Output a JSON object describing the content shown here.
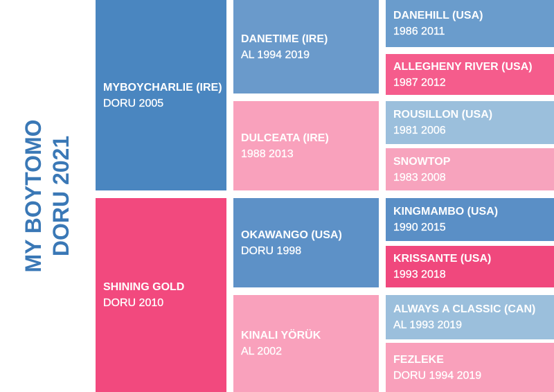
{
  "subject": {
    "name": "MY BOYTOMO",
    "details": "DORU 2021"
  },
  "generations": [
    [
      {
        "name": "MYBOYCHARLIE (IRE)",
        "details": "DORU 2005"
      },
      {
        "name": "SHINING GOLD",
        "details": "DORU 2010"
      }
    ],
    [
      {
        "name": "DANETIME (IRE)",
        "details": "AL 1994 2019"
      },
      {
        "name": "DULCEATA (IRE)",
        "details": "1988 2013"
      },
      {
        "name": "OKAWANGO (USA)",
        "details": "DORU 1998"
      },
      {
        "name": "KINALI YÖRÜK",
        "details": "AL 2002"
      }
    ],
    [
      {
        "name": "DANEHILL (USA)",
        "details": "1986 2011"
      },
      {
        "name": "ALLEGHENY RIVER (USA)",
        "details": "1987 2012"
      },
      {
        "name": "ROUSILLON (USA)",
        "details": "1981 2006"
      },
      {
        "name": "SNOWTOP",
        "details": "1983 2008"
      },
      {
        "name": "KINGMAMBO (USA)",
        "details": "1990 2015"
      },
      {
        "name": "KRISSANTE (USA)",
        "details": "1993 2018"
      },
      {
        "name": "ALWAYS A CLASSIC (CAN)",
        "details": "AL 1993 2019"
      },
      {
        "name": "FEZLEKE",
        "details": "DORU 1994 2019"
      }
    ]
  ]
}
